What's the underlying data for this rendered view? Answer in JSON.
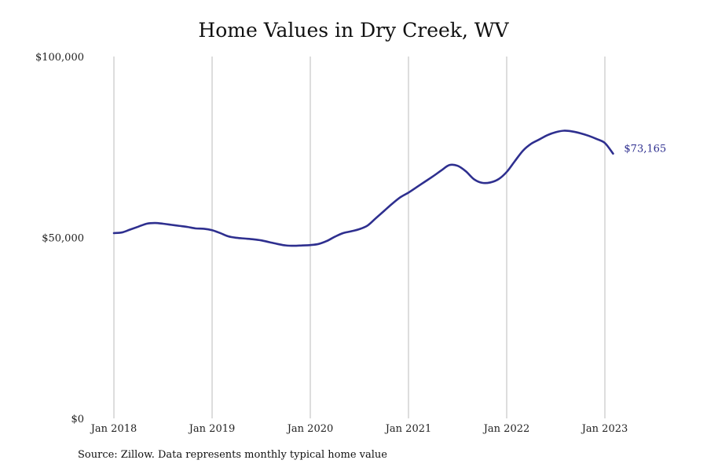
{
  "page": {
    "title": "Home Values in Dry Creek, WV",
    "source": "Source: Zillow. Data represents monthly typical home value"
  },
  "colors": {
    "line": "#2e2f8f",
    "grid": "#bbbbbb"
  },
  "chart_data": {
    "type": "line",
    "title": "Home Values in Dry Creek, WV",
    "xlabel": "",
    "ylabel": "",
    "ylim": [
      0,
      100000
    ],
    "xlim": [
      "2018-01",
      "2023-02"
    ],
    "y_ticks": [
      {
        "value": 0,
        "label": "$0"
      },
      {
        "value": 50000,
        "label": "$50,000"
      },
      {
        "value": 100000,
        "label": "$100,000"
      }
    ],
    "x_ticks": [
      {
        "value": "2018-01",
        "label": "Jan 2018"
      },
      {
        "value": "2019-01",
        "label": "Jan 2019"
      },
      {
        "value": "2020-01",
        "label": "Jan 2020"
      },
      {
        "value": "2021-01",
        "label": "Jan 2021"
      },
      {
        "value": "2022-01",
        "label": "Jan 2022"
      },
      {
        "value": "2023-01",
        "label": "Jan 2023"
      }
    ],
    "grid": {
      "vertical": true,
      "horizontal": false
    },
    "end_label": "$73,165",
    "series": [
      {
        "x": [
          "2018-01",
          "2018-02",
          "2018-03",
          "2018-04",
          "2018-05",
          "2018-06",
          "2018-07",
          "2018-08",
          "2018-09",
          "2018-10",
          "2018-11",
          "2018-12",
          "2019-01",
          "2019-02",
          "2019-03",
          "2019-04",
          "2019-05",
          "2019-06",
          "2019-07",
          "2019-08",
          "2019-09",
          "2019-10",
          "2019-11",
          "2019-12",
          "2020-01",
          "2020-02",
          "2020-03",
          "2020-04",
          "2020-05",
          "2020-06",
          "2020-07",
          "2020-08",
          "2020-09",
          "2020-10",
          "2020-11",
          "2020-12",
          "2021-01",
          "2021-02",
          "2021-03",
          "2021-04",
          "2021-05",
          "2021-06",
          "2021-07",
          "2021-08",
          "2021-09",
          "2021-10",
          "2021-11",
          "2021-12",
          "2022-01",
          "2022-02",
          "2022-03",
          "2022-04",
          "2022-05",
          "2022-06",
          "2022-07",
          "2022-08",
          "2022-09",
          "2022-10",
          "2022-11",
          "2022-12",
          "2023-01",
          "2023-02"
        ],
        "values": [
          51200,
          51400,
          52200,
          53000,
          53800,
          54000,
          53800,
          53500,
          53200,
          52900,
          52500,
          52400,
          52000,
          51200,
          50300,
          49900,
          49700,
          49500,
          49200,
          48700,
          48200,
          47800,
          47700,
          47800,
          47900,
          48200,
          49000,
          50200,
          51200,
          51700,
          52300,
          53300,
          55300,
          57300,
          59300,
          61100,
          62400,
          63900,
          65400,
          66900,
          68500,
          70000,
          69800,
          68300,
          66100,
          65100,
          65200,
          66100,
          68100,
          71100,
          74000,
          75900,
          77100,
          78300,
          79100,
          79500,
          79300,
          78800,
          78100,
          77200,
          76100,
          73165
        ]
      }
    ]
  }
}
